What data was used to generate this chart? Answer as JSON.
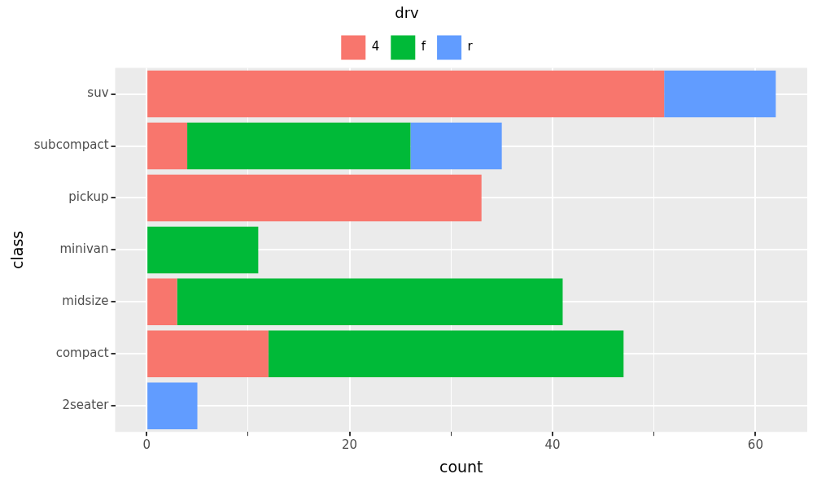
{
  "chart_data": {
    "type": "bar",
    "orientation": "horizontal",
    "stacked": true,
    "xlabel": "count",
    "ylabel": "class",
    "legend_title": "drv",
    "legend": "top",
    "categories": [
      "suv",
      "subcompact",
      "pickup",
      "minivan",
      "midsize",
      "compact",
      "2seater"
    ],
    "series": [
      {
        "name": "4",
        "color": "#f8766d",
        "values": [
          51,
          4,
          33,
          null,
          3,
          12,
          null
        ]
      },
      {
        "name": "f",
        "color": "#00ba38",
        "values": [
          null,
          22,
          null,
          11,
          38,
          35,
          null
        ]
      },
      {
        "name": "r",
        "color": "#619cff",
        "values": [
          11,
          9,
          null,
          null,
          null,
          null,
          5
        ]
      }
    ],
    "xlim": [
      -3.1,
      65.1
    ],
    "xticks": [
      0,
      {
        "value": 10,
        "label": null
      },
      20,
      {
        "value": 30,
        "label": null
      },
      40,
      {
        "value": 50,
        "label": null
      },
      60
    ],
    "grid": true
  }
}
